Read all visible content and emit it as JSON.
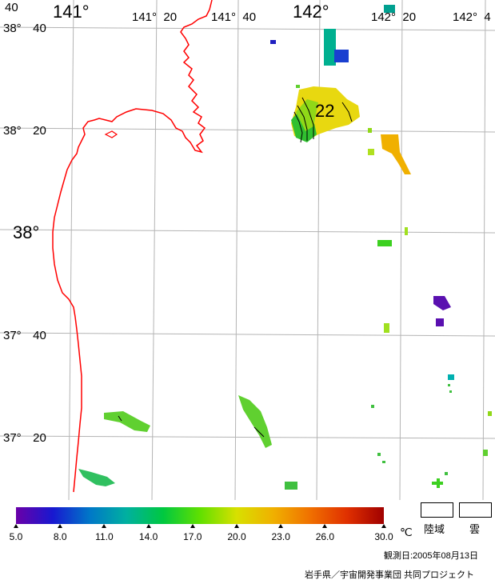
{
  "latitude_labels": [
    {
      "deg": "38°",
      "min": "40"
    },
    {
      "deg": "38°",
      "min": "20"
    },
    {
      "deg": "38°",
      "min": ""
    },
    {
      "deg": "37°",
      "min": "40"
    },
    {
      "deg": "37°",
      "min": "20"
    }
  ],
  "longitude_labels": [
    {
      "text": "40"
    },
    {
      "text": "141°"
    },
    {
      "text": "141°  20"
    },
    {
      "text": "141°  40"
    },
    {
      "text": "142°"
    },
    {
      "text": "142°  20"
    },
    {
      "text": "142°  4"
    }
  ],
  "contour_label": "22",
  "colorbar": {
    "min": 5.0,
    "max": 30.0,
    "ticks": [
      "5.0",
      "8.0",
      "11.0",
      "14.0",
      "17.0",
      "20.0",
      "23.0",
      "26.0",
      "30.0"
    ],
    "tick_values": [
      5,
      8,
      11,
      14,
      17,
      20,
      23,
      26,
      30
    ],
    "unit": "℃",
    "colors": [
      "#6a00a8",
      "#1818d0",
      "#0077c8",
      "#00b0a0",
      "#00c840",
      "#60e000",
      "#d8e000",
      "#f0b000",
      "#f07000",
      "#e03000",
      "#a00000"
    ]
  },
  "legend": {
    "land_label": "陸域",
    "cloud_label": "雲"
  },
  "footer": {
    "observation_date": "観測日:2005年08月13日",
    "credit": "岩手県／宇宙開発事業団  共同プロジェクト"
  },
  "colors": {
    "coastline": "#ff0000",
    "graticule": "#b0b0b0"
  }
}
